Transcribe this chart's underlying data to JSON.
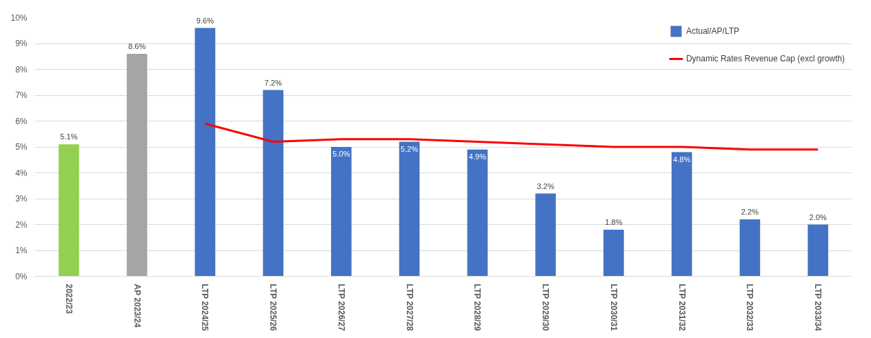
{
  "chart_data": {
    "type": "bar",
    "categories": [
      "2022/23",
      "AP 2023/24",
      "LTP 2024/25",
      "LTP 2025/26",
      "LTP 2026/27",
      "LTP 2027/28",
      "LTP 2028/29",
      "LTP 2029/30",
      "LTP 2030/31",
      "LTP 2031/32",
      "LTP 2032/33",
      "LTP 2033/34"
    ],
    "series": [
      {
        "name": "Actual/AP/LTP",
        "color": "#4472c4",
        "colors": [
          "#92d050",
          "#a5a5a5",
          "#4472c4",
          "#4472c4",
          "#4472c4",
          "#4472c4",
          "#4472c4",
          "#4472c4",
          "#4472c4",
          "#4472c4",
          "#4472c4",
          "#4472c4"
        ],
        "values": [
          5.1,
          8.6,
          9.6,
          7.2,
          5.0,
          5.2,
          4.9,
          3.2,
          1.8,
          4.8,
          2.2,
          2.0
        ],
        "value_labels": [
          "5.1%",
          "8.6%",
          "9.6%",
          "7.2%",
          "5.0%",
          "5.2%",
          "4.9%",
          "3.2%",
          "1.8%",
          "4.8%",
          "2.2%",
          "2.0%"
        ]
      },
      {
        "name": "Dynamic Rates Revenue Cap (excl growth)",
        "type": "line",
        "color": "#ff0000",
        "values": [
          null,
          null,
          5.9,
          5.2,
          5.3,
          5.3,
          5.2,
          5.1,
          5.0,
          5.0,
          4.9,
          4.9
        ]
      }
    ],
    "ylim": [
      0,
      10
    ],
    "yticks": [
      {
        "value": 0,
        "label": "0%"
      },
      {
        "value": 1,
        "label": "1%"
      },
      {
        "value": 2,
        "label": "2%"
      },
      {
        "value": 3,
        "label": "3%"
      },
      {
        "value": 4,
        "label": "4%"
      },
      {
        "value": 5,
        "label": "5%"
      },
      {
        "value": 6,
        "label": "6%"
      },
      {
        "value": 7,
        "label": "7%"
      },
      {
        "value": 8,
        "label": "8%"
      },
      {
        "value": 9,
        "label": "9%"
      },
      {
        "value": 10,
        "label": "10%"
      }
    ],
    "grid": "y",
    "legend": "top right"
  }
}
